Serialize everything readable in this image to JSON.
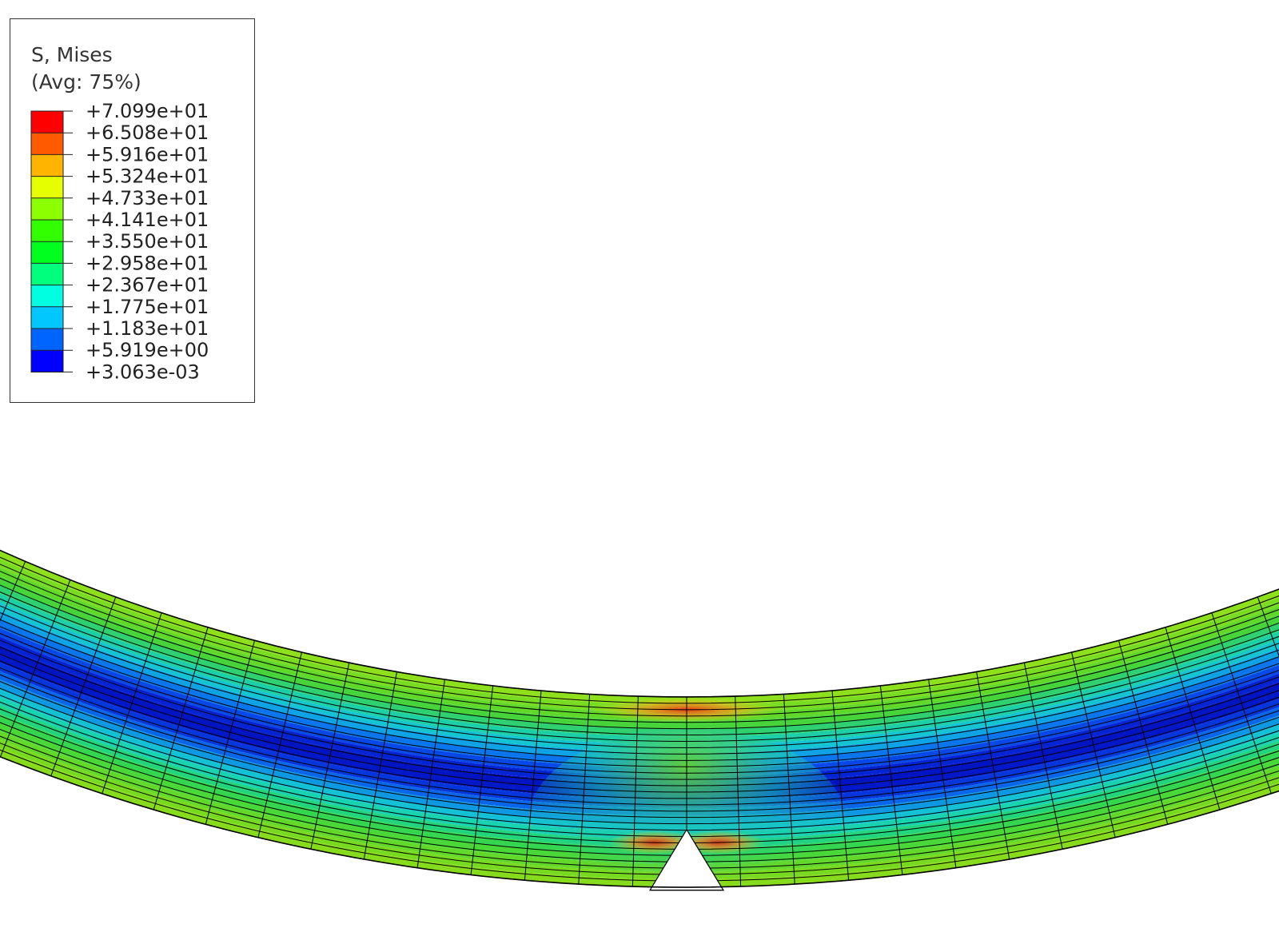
{
  "legend": {
    "variable": "S, Mises",
    "averaging": "(Avg: 75%)",
    "levels": [
      {
        "label": "+7.099e+01",
        "value": 70.99,
        "color": "#ff0000"
      },
      {
        "label": "+6.508e+01",
        "value": 65.08,
        "color": "#ff5a00"
      },
      {
        "label": "+5.916e+01",
        "value": 59.16,
        "color": "#ffb400"
      },
      {
        "label": "+5.324e+01",
        "value": 53.24,
        "color": "#e6ff00"
      },
      {
        "label": "+4.733e+01",
        "value": 47.33,
        "color": "#8cff00"
      },
      {
        "label": "+4.141e+01",
        "value": 41.41,
        "color": "#32ff00"
      },
      {
        "label": "+3.550e+01",
        "value": 35.5,
        "color": "#00ff1e"
      },
      {
        "label": "+2.958e+01",
        "value": 29.58,
        "color": "#00ff7d"
      },
      {
        "label": "+2.367e+01",
        "value": 23.67,
        "color": "#00ffe1"
      },
      {
        "label": "+1.775e+01",
        "value": 17.75,
        "color": "#00c8ff"
      },
      {
        "label": "+1.183e+01",
        "value": 11.83,
        "color": "#0064ff"
      },
      {
        "label": "+5.919e+00",
        "value": 5.919,
        "color": "#0000ff"
      },
      {
        "label": "+3.063e-03",
        "value": 0.003063,
        "color": ""
      }
    ]
  },
  "model": {
    "description_colors": {
      "outer_fiber": "#7ed321",
      "neutral_axis": "#0018c8",
      "mesh_line": "#000000",
      "hotspot": "#e8351a"
    }
  }
}
